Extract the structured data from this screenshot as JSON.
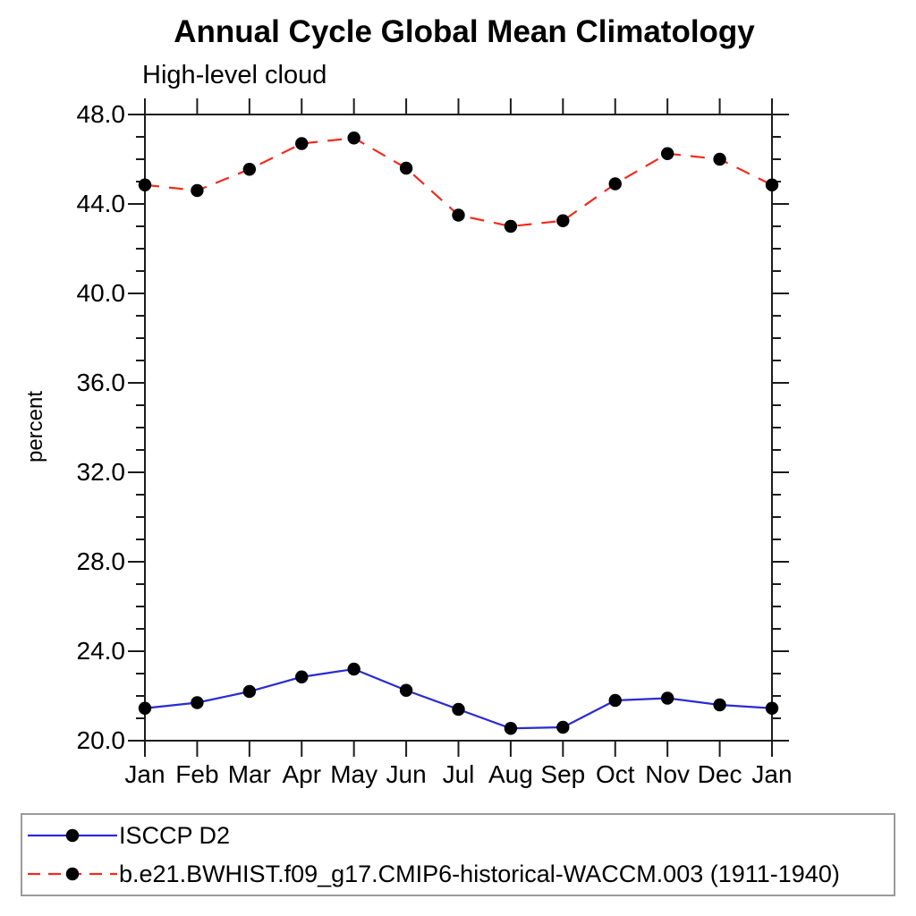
{
  "figure": {
    "title": "Annual Cycle Global Mean Climatology",
    "subtitle": "High-level cloud",
    "ylabel": "percent"
  },
  "chart_data": {
    "type": "line",
    "title": "Annual Cycle Global Mean Climatology",
    "subtitle": "High-level cloud",
    "xlabel": "",
    "ylabel": "percent",
    "ylim": [
      20.0,
      48.0
    ],
    "ytick_major_interval": 4.0,
    "ytick_minor_interval": 1.0,
    "ytick_labels": [
      "20.0",
      "24.0",
      "28.0",
      "32.0",
      "36.0",
      "40.0",
      "44.0",
      "48.0"
    ],
    "grid": false,
    "legend_position": "bottom",
    "frame_color": "#1c1c1c",
    "categories": [
      "Jan",
      "Feb",
      "Mar",
      "Apr",
      "May",
      "Jun",
      "Jul",
      "Aug",
      "Sep",
      "Oct",
      "Nov",
      "Dec",
      "Jan"
    ],
    "series": [
      {
        "name": "ISCCP D2",
        "color": "#2a2ad4",
        "line_style": "solid",
        "marker": "filled-circle",
        "marker_color": "#000000",
        "values": [
          21.45,
          21.7,
          22.2,
          22.85,
          23.2,
          22.25,
          21.4,
          20.55,
          20.6,
          21.8,
          21.9,
          21.6,
          21.45
        ]
      },
      {
        "name": "b.e21.BWHIST.f09_g17.CMIP6-historical-WACCM.003 (1911-1940)",
        "color": "#f22b1d",
        "line_style": "dashed",
        "marker": "filled-circle",
        "marker_color": "#000000",
        "values": [
          44.85,
          44.6,
          45.55,
          46.7,
          46.95,
          45.6,
          43.5,
          43.0,
          43.25,
          44.9,
          46.25,
          46.0,
          44.85
        ]
      }
    ]
  }
}
